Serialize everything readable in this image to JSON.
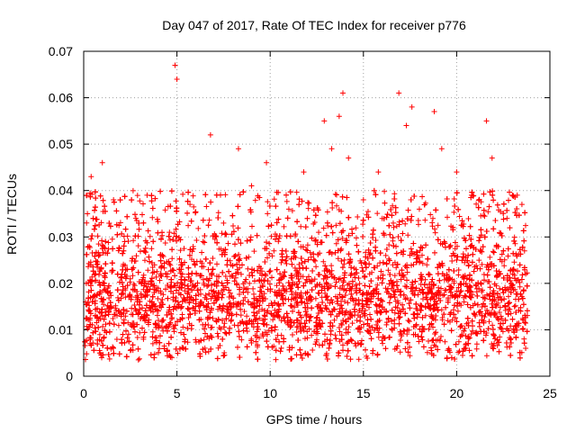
{
  "chart_data": {
    "type": "scatter",
    "title": "Day 047 of 2017, Rate Of TEC Index for receiver p776",
    "xlabel": "GPS time / hours",
    "ylabel": "ROTI / TECUs",
    "xlim": [
      0,
      25
    ],
    "ylim": [
      0,
      0.07
    ],
    "xticks": [
      "0",
      "5",
      "10",
      "15",
      "20",
      "25"
    ],
    "yticks": [
      "0",
      "0.01",
      "0.02",
      "0.03",
      "0.04",
      "0.05",
      "0.06",
      "0.07"
    ],
    "grid": true,
    "marker": "plus",
    "color": "#ff0000",
    "series": [
      {
        "x": [
          0.1,
          0.2,
          0.3,
          0.4,
          0.6,
          0.8,
          1.0,
          1.3,
          1.6,
          1.9,
          2.2,
          2.5,
          2.8,
          3.1,
          3.4,
          3.8,
          4.2,
          4.6,
          4.9,
          5.0,
          5.3,
          5.7,
          6.0,
          6.4,
          6.8,
          7.1,
          7.5,
          7.9,
          8.3,
          8.6,
          9.0,
          9.4,
          9.8,
          10.2,
          10.6,
          11.0,
          11.4,
          11.8,
          12.2,
          12.6,
          12.9,
          13.3,
          13.7,
          13.9,
          14.2,
          14.6,
          15.0,
          15.4,
          15.8,
          16.2,
          16.6,
          16.9,
          17.3,
          17.6,
          18.0,
          18.4,
          18.8,
          19.2,
          19.6,
          20.0,
          20.4,
          20.8,
          21.2,
          21.6,
          21.9,
          22.3,
          22.7,
          23.1,
          23.5,
          23.7
        ],
        "y": [
          0.016,
          0.035,
          0.028,
          0.043,
          0.022,
          0.012,
          0.046,
          0.019,
          0.038,
          0.014,
          0.029,
          0.021,
          0.034,
          0.017,
          0.039,
          0.024,
          0.012,
          0.031,
          0.067,
          0.064,
          0.022,
          0.037,
          0.015,
          0.029,
          0.052,
          0.018,
          0.033,
          0.024,
          0.049,
          0.019,
          0.041,
          0.014,
          0.046,
          0.027,
          0.012,
          0.036,
          0.022,
          0.044,
          0.017,
          0.031,
          0.055,
          0.049,
          0.056,
          0.061,
          0.047,
          0.023,
          0.038,
          0.016,
          0.044,
          0.026,
          0.033,
          0.061,
          0.054,
          0.058,
          0.036,
          0.024,
          0.057,
          0.049,
          0.021,
          0.044,
          0.016,
          0.039,
          0.025,
          0.055,
          0.047,
          0.022,
          0.034,
          0.015,
          0.037,
          0.006
        ]
      }
    ]
  }
}
